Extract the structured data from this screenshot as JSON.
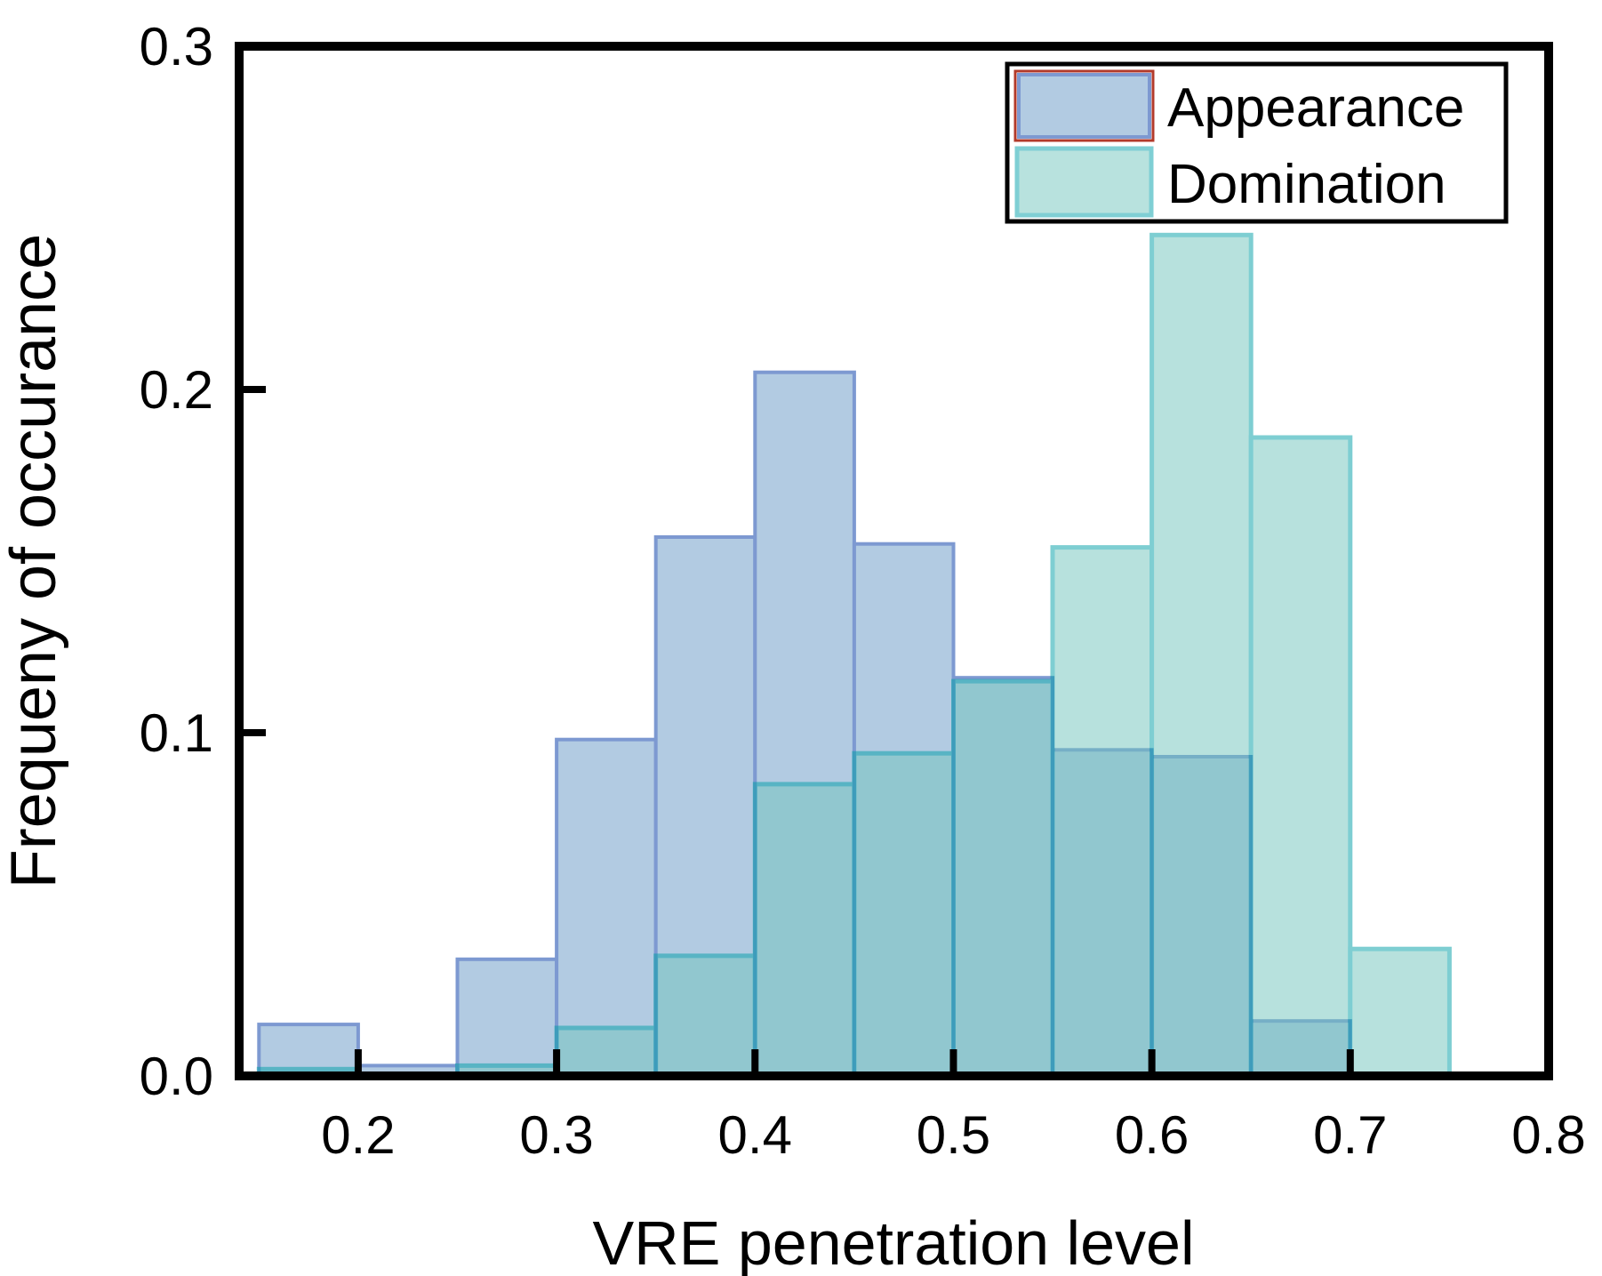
{
  "figure": {
    "background": "#ffffff",
    "frame_color": "#000000"
  },
  "chart_data": {
    "type": "bar",
    "subtype": "overlapping-histogram",
    "title": "",
    "xlabel": "VRE penetration level",
    "ylabel": "Frequeny of occurance",
    "xlim": [
      0.14,
      0.8
    ],
    "ylim": [
      0.0,
      0.3
    ],
    "bin_width": 0.05,
    "x_ticks": [
      0.2,
      0.3,
      0.4,
      0.5,
      0.6,
      0.7,
      0.8
    ],
    "x_tick_labels": [
      "0.2",
      "0.3",
      "0.4",
      "0.5",
      "0.6",
      "0.7",
      "0.8"
    ],
    "y_ticks": [
      0.0,
      0.1,
      0.2,
      0.3
    ],
    "y_tick_labels": [
      "0.0",
      "0.1",
      "0.2",
      "0.3"
    ],
    "grid": false,
    "series": [
      {
        "id": "appearance",
        "name": "Appearance",
        "bin_starts": [
          0.15,
          0.2,
          0.25,
          0.3,
          0.35,
          0.4,
          0.45,
          0.5,
          0.55,
          0.6,
          0.65,
          0.7
        ],
        "values": [
          0.015,
          0.003,
          0.034,
          0.098,
          0.157,
          0.205,
          0.155,
          0.116,
          0.095,
          0.093,
          0.016,
          0
        ],
        "fill": "#b2cbe2",
        "stroke": "#7d99d1",
        "stroke_width": 4,
        "opacity": 1
      },
      {
        "id": "domination",
        "name": "Domination",
        "bin_starts": [
          0.15,
          0.2,
          0.25,
          0.3,
          0.35,
          0.4,
          0.45,
          0.5,
          0.55,
          0.6,
          0.65,
          0.7
        ],
        "values": [
          0.002,
          0,
          0.003,
          0.014,
          0.035,
          0.085,
          0.094,
          0.115,
          0.154,
          0.245,
          0.186,
          0.037
        ],
        "fill": "#71c5bd",
        "stroke": "#009fa7",
        "stroke_width": 5,
        "opacity": 0.5
      }
    ],
    "legend": {
      "position": "top-right",
      "entries": [
        "Appearance",
        "Domination"
      ],
      "swatch_appearance_fill": "#b2cbe2",
      "swatch_appearance_inner_border": "#7d99d1",
      "swatch_appearance_outer_border": "#b23a2b",
      "swatch_domination_fill": "#b8e2de",
      "swatch_domination_border": "#7fcfd4"
    }
  }
}
